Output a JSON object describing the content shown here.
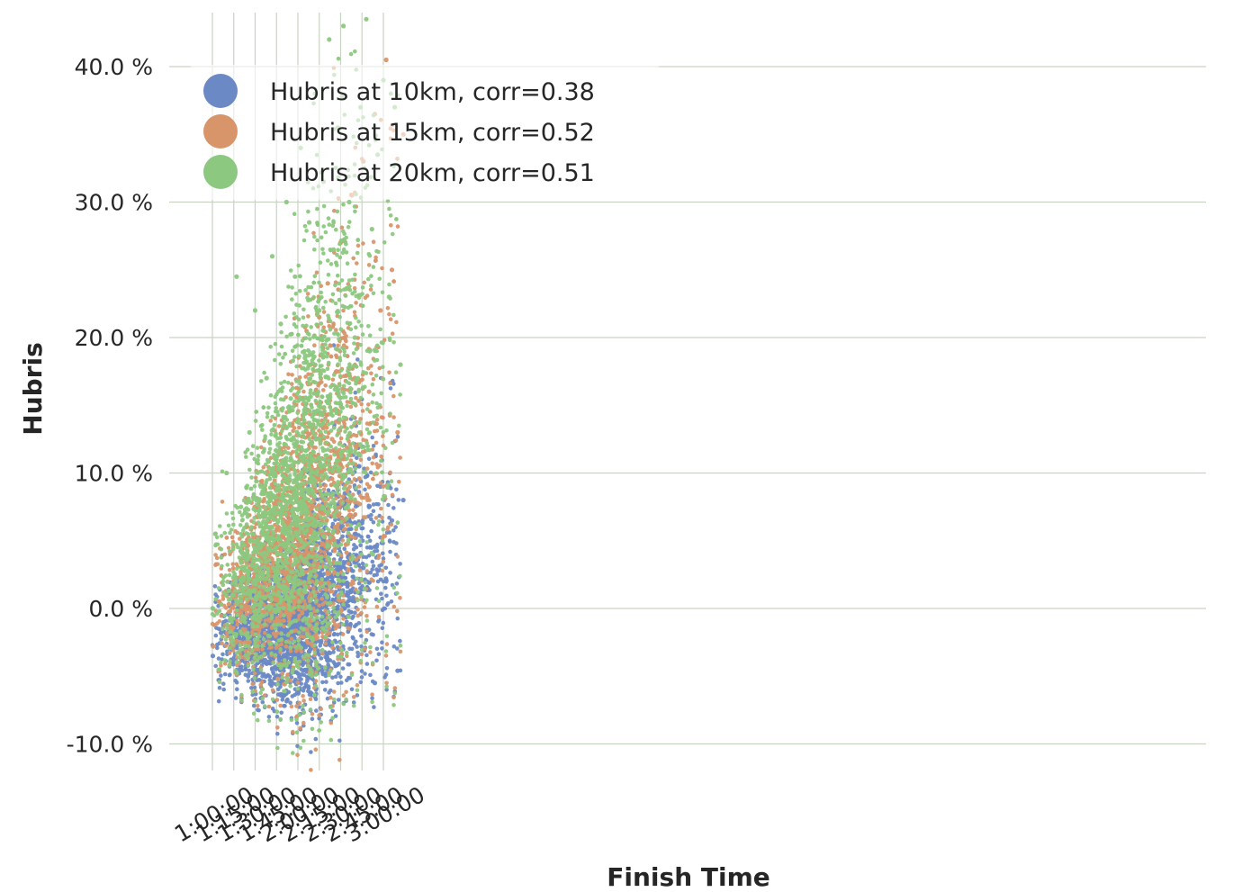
{
  "chart_data": {
    "type": "scatter",
    "title": "",
    "xlabel": "Finish Time",
    "ylabel": "Hubris",
    "x_unit": "finish time (h:mm:ss)",
    "y_unit": "percent",
    "xlim": [
      "0:55:00",
      "3:40:00"
    ],
    "ylim": [
      -12,
      44
    ],
    "x_ticks": [
      "1:00:00",
      "1:15:00",
      "1:30:00",
      "1:45:00",
      "2:00:00",
      "2:15:00",
      "2:30:00",
      "2:45:00",
      "3:00:00"
    ],
    "y_ticks": [
      "-10.0 %",
      "0.0 %",
      "10.0 %",
      "20.0 %",
      "30.0 %",
      "40.0 %"
    ],
    "grid": true,
    "legend_position": "top-left",
    "series": [
      {
        "name": "Hubris at 10km, corr=0.38",
        "color": "#6a89c5",
        "points": [
          [
            "1:00:20",
            -3.5
          ],
          [
            "1:06:00",
            -1.8
          ],
          [
            "1:12:00",
            -0.5
          ],
          [
            "1:17:00",
            -1.2
          ],
          [
            "1:20:00",
            0.4
          ],
          [
            "1:25:00",
            -1.0
          ],
          [
            "1:28:00",
            -2.2
          ],
          [
            "1:32:00",
            -1.5
          ],
          [
            "1:35:00",
            0.2
          ],
          [
            "1:37:00",
            -3.0
          ],
          [
            "1:40:00",
            -1.8
          ],
          [
            "1:42:00",
            -4.0
          ],
          [
            "1:44:00",
            -0.8
          ],
          [
            "1:46:00",
            -2.6
          ],
          [
            "1:48:00",
            -5.5
          ],
          [
            "1:50:00",
            -1.2
          ],
          [
            "1:52:00",
            -3.4
          ],
          [
            "1:55:00",
            0.5
          ],
          [
            "1:57:00",
            -2.0
          ],
          [
            "2:00:00",
            -4.8
          ],
          [
            "2:02:00",
            1.5
          ],
          [
            "2:05:00",
            -0.6
          ],
          [
            "2:08:00",
            -3.2
          ],
          [
            "2:10:00",
            2.5
          ],
          [
            "2:12:00",
            -6.5
          ],
          [
            "2:15:00",
            1.0
          ],
          [
            "2:18:00",
            4.0
          ],
          [
            "2:20:00",
            -2.5
          ],
          [
            "2:22:00",
            3.2
          ],
          [
            "2:25:00",
            6.0
          ],
          [
            "2:27:00",
            -4.2
          ],
          [
            "2:30:00",
            2.0
          ],
          [
            "2:33:00",
            8.5
          ],
          [
            "2:36:00",
            -1.5
          ],
          [
            "2:40:00",
            5.5
          ],
          [
            "2:43:00",
            10.5
          ],
          [
            "2:46:00",
            3.0
          ],
          [
            "2:50:00",
            7.5
          ],
          [
            "2:54:00",
            -5.5
          ],
          [
            "2:58:00",
            9.0
          ],
          [
            "3:02:00",
            2.0
          ],
          [
            "3:06:00",
            6.5
          ],
          [
            "3:10:00",
            -4.6
          ],
          [
            "3:14:00",
            8.0
          ]
        ]
      },
      {
        "name": "Hubris at 15km, corr=0.52",
        "color": "#d9956a",
        "points": [
          [
            "1:00:30",
            -2.8
          ],
          [
            "1:05:00",
            0.5
          ],
          [
            "1:10:00",
            1.2
          ],
          [
            "1:15:00",
            2.0
          ],
          [
            "1:20:00",
            3.5
          ],
          [
            "1:25:00",
            1.5
          ],
          [
            "1:28:00",
            5.0
          ],
          [
            "1:32:00",
            2.8
          ],
          [
            "1:36:00",
            7.5
          ],
          [
            "1:40:00",
            4.0
          ],
          [
            "1:43:00",
            9.0
          ],
          [
            "1:46:00",
            3.2
          ],
          [
            "1:50:00",
            11.5
          ],
          [
            "1:53:00",
            6.0
          ],
          [
            "1:56:00",
            13.5
          ],
          [
            "2:00:00",
            8.0
          ],
          [
            "2:03:00",
            15.5
          ],
          [
            "2:06:00",
            5.5
          ],
          [
            "2:09:00",
            18.0
          ],
          [
            "2:12:00",
            10.0
          ],
          [
            "2:15:00",
            21.5
          ],
          [
            "2:18:00",
            7.0
          ],
          [
            "2:21:00",
            24.0
          ],
          [
            "2:24:00",
            12.5
          ],
          [
            "2:27:00",
            17.5
          ],
          [
            "2:30:00",
            27.0
          ],
          [
            "2:34:00",
            14.0
          ],
          [
            "2:38:00",
            30.5
          ],
          [
            "2:42:00",
            19.5
          ],
          [
            "2:46:00",
            33.0
          ],
          [
            "2:50:00",
            16.0
          ],
          [
            "2:54:00",
            36.5
          ],
          [
            "2:58:00",
            22.0
          ],
          [
            "3:02:00",
            40.5
          ],
          [
            "3:06:00",
            25.0
          ],
          [
            "3:10:00",
            13.0
          ],
          [
            "3:14:00",
            35.0
          ]
        ]
      },
      {
        "name": "Hubris at 20km, corr=0.51",
        "color": "#8cc87f",
        "points": [
          [
            "1:00:20",
            0.0
          ],
          [
            "1:02:00",
            5.5
          ],
          [
            "1:10:00",
            10.0
          ],
          [
            "1:12:00",
            -4.2
          ],
          [
            "1:17:00",
            24.5
          ],
          [
            "1:20:00",
            7.5
          ],
          [
            "1:26:00",
            13.0
          ],
          [
            "1:30:00",
            22.0
          ],
          [
            "1:34:00",
            9.0
          ],
          [
            "1:38:00",
            17.0
          ],
          [
            "1:42:00",
            26.0
          ],
          [
            "1:45:00",
            11.0
          ],
          [
            "1:48:00",
            21.0
          ],
          [
            "1:52:00",
            30.0
          ],
          [
            "1:55:00",
            15.5
          ],
          [
            "1:58:00",
            24.5
          ],
          [
            "2:02:00",
            34.0
          ],
          [
            "2:05:00",
            18.5
          ],
          [
            "2:08:00",
            28.5
          ],
          [
            "2:12:00",
            38.0
          ],
          [
            "2:15:00",
            22.0
          ],
          [
            "2:18:00",
            31.5
          ],
          [
            "2:22:00",
            42.0
          ],
          [
            "2:25:00",
            26.5
          ],
          [
            "2:28:00",
            35.5
          ],
          [
            "2:32:00",
            43.0
          ],
          [
            "2:36:00",
            30.0
          ],
          [
            "2:40:00",
            20.0
          ],
          [
            "2:44:00",
            37.0
          ],
          [
            "2:48:00",
            43.5
          ],
          [
            "2:52:00",
            28.0
          ],
          [
            "2:56:00",
            33.5
          ],
          [
            "3:00:00",
            39.0
          ],
          [
            "3:04:00",
            23.0
          ],
          [
            "3:08:00",
            37.0
          ],
          [
            "3:12:00",
            18.0
          ]
        ]
      }
    ]
  }
}
